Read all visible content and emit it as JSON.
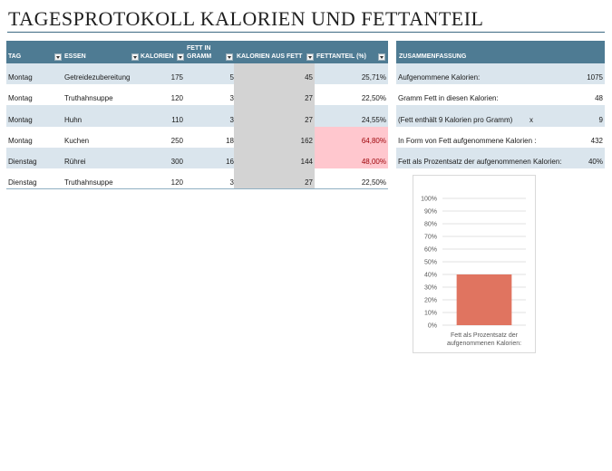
{
  "title": "TAGESPROTOKOLL KALORIEN UND FETTANTEIL",
  "log": {
    "headers": {
      "tag": "TAG",
      "essen": "ESSEN",
      "kalorien": "KALORIEN",
      "fett_line1": "FETT IN",
      "fett_line2": "GRAMM",
      "kal_fett": "KALORIEN AUS FETT",
      "fettanteil": "FETTANTEIL (%)"
    },
    "rows": [
      {
        "tag": "Montag",
        "essen": "Getreidezubereitung",
        "kalorien": "175",
        "fett": "5",
        "kal_fett": "45",
        "anteil": "25,71%"
      },
      {
        "tag": "Montag",
        "essen": "Truthahnsuppe",
        "kalorien": "120",
        "fett": "3",
        "kal_fett": "27",
        "anteil": "22,50%"
      },
      {
        "tag": "Montag",
        "essen": "Huhn",
        "kalorien": "110",
        "fett": "3",
        "kal_fett": "27",
        "anteil": "24,55%"
      },
      {
        "tag": "Montag",
        "essen": "Kuchen",
        "kalorien": "250",
        "fett": "18",
        "kal_fett": "162",
        "anteil": "64,80%"
      },
      {
        "tag": "Dienstag",
        "essen": "Rührei",
        "kalorien": "300",
        "fett": "16",
        "kal_fett": "144",
        "anteil": "48,00%"
      },
      {
        "tag": "Dienstag",
        "essen": "Truthahnsuppe",
        "kalorien": "120",
        "fett": "3",
        "kal_fett": "27",
        "anteil": "22,50%"
      }
    ],
    "highlight_color": "#ffc7ce",
    "highlight_text_color": "#9c0006",
    "header_color": "#4e7b93",
    "band_color": "#dae5ed"
  },
  "summary": {
    "header": "ZUSAMMENFASSUNG",
    "rows": [
      {
        "label": "Aufgenommene Kalorien:",
        "mid": "",
        "value": "1075"
      },
      {
        "label": "Gramm Fett in diesen Kalorien:",
        "mid": "",
        "value": "48"
      },
      {
        "label": "(Fett enthält 9 Kalorien pro Gramm)",
        "mid": "x",
        "value": "9"
      },
      {
        "label": "In Form von Fett aufgenommene Kalorien :",
        "mid": "",
        "value": "432"
      },
      {
        "label": "Fett als Prozentsatz der aufgenommenen Kalorien:",
        "mid": "",
        "value": "40%"
      }
    ]
  },
  "chart_data": {
    "type": "bar",
    "categories": [
      "Fett als Prozentsatz der aufgenommenen Kalorien:"
    ],
    "category_lines": [
      "Fett als Prozentsatz der",
      "aufgenommenen Kalorien:"
    ],
    "values": [
      40
    ],
    "ylim": [
      0,
      100
    ],
    "yticks": [
      0,
      10,
      20,
      30,
      40,
      50,
      60,
      70,
      80,
      90,
      100
    ],
    "ytick_labels": [
      "0%",
      "10%",
      "20%",
      "30%",
      "40%",
      "50%",
      "60%",
      "70%",
      "80%",
      "90%",
      "100%"
    ],
    "grid": true,
    "bar_color": "#e07460",
    "title": "",
    "xlabel": "",
    "ylabel": ""
  }
}
